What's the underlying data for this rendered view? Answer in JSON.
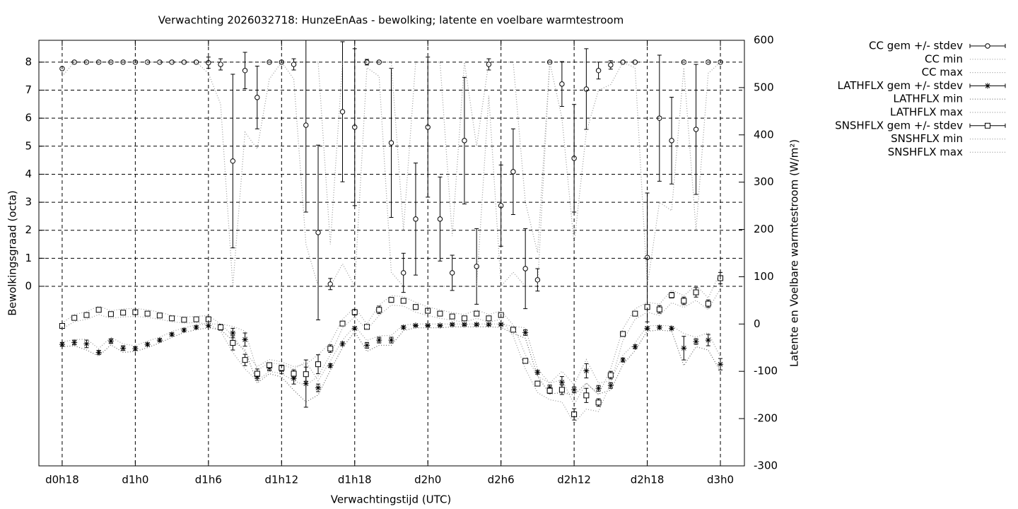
{
  "chart_data": {
    "type": "errorbar",
    "title": "Verwachting 2026032718: HunzeEnAas - bewolking; latente en voelbare warmtestroom",
    "x_label": "Verwachtingstijd (UTC)",
    "y_label": "Bewolkingsgraad (octa)",
    "y2_label": "Latente en Voelbare warmtestroom (W/m²)",
    "x": [
      18,
      19,
      20,
      21,
      22,
      23,
      24,
      25,
      26,
      27,
      28,
      29,
      30,
      31,
      32,
      33,
      34,
      35,
      36,
      37,
      38,
      39,
      40,
      41,
      42,
      43,
      44,
      45,
      46,
      47,
      48,
      49,
      50,
      51,
      52,
      53,
      54,
      55,
      56,
      57,
      58,
      59,
      60,
      61,
      62,
      63,
      64,
      65,
      66,
      67,
      68,
      69,
      70,
      71,
      72
    ],
    "xlim": [
      16.09,
      73.97
    ],
    "xticks": [
      {
        "value": 18,
        "label": "d0h18"
      },
      {
        "value": 24,
        "label": "d1h0"
      },
      {
        "value": 30,
        "label": "d1h6"
      },
      {
        "value": 36,
        "label": "d1h12"
      },
      {
        "value": 42,
        "label": "d1h18"
      },
      {
        "value": 48,
        "label": "d2h0"
      },
      {
        "value": 54,
        "label": "d2h6"
      },
      {
        "value": 60,
        "label": "d2h12"
      },
      {
        "value": 66,
        "label": "d2h18"
      },
      {
        "value": 72,
        "label": "d3h0"
      }
    ],
    "ylim": [
      -6.41,
      8.78
    ],
    "yticks": [
      0,
      1,
      2,
      3,
      4,
      5,
      6,
      7,
      8
    ],
    "y2lim": [
      -300,
      600
    ],
    "y2ticks": [
      -300,
      -200,
      -100,
      0,
      100,
      200,
      300,
      400,
      500,
      600
    ],
    "grid": true,
    "legend": "outside-right",
    "series": [
      {
        "name": "CC gem +/- stdev",
        "color": "#000000",
        "marker": "circle",
        "values": [
          7.77,
          8,
          8,
          8,
          8,
          8,
          8,
          8,
          8,
          8,
          8,
          8,
          7.98,
          7.92,
          4.47,
          7.7,
          6.74,
          8,
          8,
          7.92,
          5.75,
          1.92,
          0.08,
          6.23,
          5.68,
          8,
          8,
          5.12,
          0.48,
          2.4,
          5.68,
          2.4,
          0.48,
          5.2,
          0.71,
          7.92,
          2.88,
          4.09,
          0.63,
          0.23,
          8,
          7.22,
          4.57,
          7.04,
          7.7,
          7.9,
          8,
          8,
          1.03,
          6,
          5.2,
          8,
          5.6,
          8,
          8
        ],
        "errors": [
          0,
          0,
          0,
          0,
          0,
          0,
          0,
          0,
          0,
          0,
          0,
          0,
          0.2,
          0.2,
          3.1,
          0.65,
          1.12,
          0,
          0,
          0.2,
          3.1,
          3.12,
          0.2,
          2.5,
          2.8,
          0.1,
          0,
          2.66,
          0.7,
          2,
          2.5,
          1.5,
          0.63,
          2.26,
          1.35,
          0.2,
          1.45,
          1.53,
          1.43,
          0.4,
          0,
          0.8,
          1.92,
          1.44,
          0.3,
          0.15,
          0,
          0,
          2.3,
          2.25,
          1.55,
          0,
          2.32,
          0.05,
          0
        ]
      },
      {
        "name": "CC min",
        "color": "#999999",
        "values": [
          7.5,
          8,
          8,
          8,
          8,
          8,
          8,
          8,
          8,
          8,
          8,
          8,
          7.6,
          6.5,
          0,
          5.5,
          4.9,
          7.4,
          8,
          7.4,
          1.5,
          0,
          0,
          0.8,
          0,
          7.8,
          7.5,
          0.5,
          0,
          0,
          0,
          0,
          0,
          0,
          0,
          6.8,
          0,
          0.5,
          0,
          0,
          8,
          6,
          1.5,
          5.5,
          7,
          7.2,
          8,
          7.8,
          0,
          3,
          2.7,
          7.8,
          2,
          7.6,
          8
        ]
      },
      {
        "name": "CC max",
        "color": "#999999",
        "values": [
          8,
          8,
          8,
          8,
          8,
          8,
          8,
          8,
          8,
          8,
          8,
          8,
          8,
          8,
          8,
          8,
          8,
          8,
          8,
          8,
          8,
          8,
          1.5,
          8,
          8,
          8,
          8,
          8,
          2,
          8,
          8,
          8,
          1.8,
          8,
          5,
          8,
          8,
          8,
          3,
          1.2,
          8,
          8,
          8,
          8,
          8,
          8,
          8,
          8,
          8,
          8,
          8,
          8,
          8,
          8,
          8
        ]
      },
      {
        "name": "LATHFLX gem +/- stdev",
        "color": "#000000",
        "marker": "star",
        "axis": "y2",
        "values": [
          -43,
          -39,
          -42,
          -60,
          -36,
          -51,
          -52,
          -43,
          -34,
          -22,
          -13,
          -7,
          -3,
          -6,
          -19,
          -33,
          -111,
          -93,
          -97,
          -115,
          -126,
          -135,
          -88,
          -42,
          -9,
          -45,
          -34,
          -34,
          -7,
          -3,
          -3,
          -3,
          -1,
          -1,
          -1,
          -1,
          -1,
          -12,
          -18,
          -102,
          -135,
          -123,
          -139,
          -99,
          -136,
          -130,
          -76,
          -48,
          -9,
          -7,
          -9,
          -51,
          -37,
          -34,
          -85
        ],
        "errors": [
          4,
          5,
          8,
          4,
          5,
          5,
          4,
          3,
          3,
          3,
          3,
          3,
          3,
          3,
          10,
          14,
          8,
          6,
          8,
          12,
          50,
          8,
          4,
          4,
          3,
          6,
          6,
          6,
          3,
          2,
          2,
          2,
          2,
          2,
          2,
          2,
          2,
          3,
          6,
          4,
          6,
          12,
          6,
          15,
          6,
          6,
          4,
          4,
          3,
          3,
          3,
          25,
          6,
          12,
          12
        ]
      },
      {
        "name": "LATHFLX min",
        "color": "#666666",
        "axis": "y2",
        "values": [
          -48,
          -46,
          -55,
          -68,
          -44,
          -60,
          -58,
          -50,
          -40,
          -28,
          -18,
          -12,
          -8,
          -12,
          -35,
          -55,
          -125,
          -105,
          -112,
          -140,
          -165,
          -150,
          -98,
          -50,
          -16,
          -58,
          -45,
          -45,
          -14,
          -8,
          -8,
          -8,
          -6,
          -6,
          -6,
          -6,
          -7,
          -20,
          -30,
          -110,
          -148,
          -145,
          -150,
          -125,
          -148,
          -140,
          -86,
          -56,
          -15,
          -13,
          -15,
          -88,
          -48,
          -55,
          -100
        ]
      },
      {
        "name": "LATHFLX max",
        "color": "#999999",
        "axis": "y2",
        "values": [
          -38,
          -33,
          -32,
          -52,
          -28,
          -42,
          -46,
          -36,
          -28,
          -16,
          -8,
          -2,
          0,
          0,
          -5,
          -15,
          -98,
          -82,
          -85,
          -95,
          -80,
          -120,
          -78,
          -34,
          -4,
          -35,
          -25,
          -24,
          -2,
          0,
          0,
          0,
          0,
          0,
          0,
          0,
          0,
          -5,
          -8,
          -95,
          -125,
          -100,
          -128,
          -75,
          -125,
          -120,
          -66,
          -40,
          -4,
          -3,
          -4,
          -20,
          -28,
          -18,
          -70
        ]
      },
      {
        "name": "SNSHFLX gem +/- stdev",
        "color": "#000000",
        "marker": "square",
        "axis": "y2",
        "values": [
          -4,
          13,
          19,
          30,
          21,
          24,
          25,
          22,
          18,
          12,
          9,
          10,
          10,
          -7,
          -40,
          -76,
          -105,
          -87,
          -93,
          -105,
          -106,
          -85,
          -52,
          1,
          25,
          -6,
          30,
          51,
          49,
          36,
          28,
          22,
          16,
          12,
          22,
          12,
          19,
          -12,
          -78,
          -126,
          -141,
          -139,
          -191,
          -151,
          -166,
          -108,
          -21,
          22,
          36,
          31,
          61,
          49,
          67,
          43,
          97
        ],
        "errors": [
          3,
          3,
          3,
          3,
          3,
          3,
          3,
          3,
          3,
          3,
          3,
          3,
          5,
          6,
          15,
          12,
          10,
          5,
          6,
          8,
          15,
          20,
          8,
          5,
          6,
          4,
          8,
          5,
          5,
          5,
          5,
          4,
          4,
          4,
          4,
          5,
          5,
          4,
          5,
          5,
          6,
          10,
          12,
          15,
          8,
          8,
          5,
          4,
          4,
          8,
          6,
          8,
          10,
          8,
          12
        ]
      },
      {
        "name": "SNSHFLX min",
        "color": "#999999",
        "axis": "y2",
        "values": [
          -10,
          5,
          10,
          20,
          12,
          15,
          16,
          14,
          10,
          5,
          2,
          3,
          0,
          -15,
          -60,
          -95,
          -120,
          -100,
          -105,
          -120,
          -130,
          -110,
          -65,
          -8,
          15,
          -12,
          18,
          40,
          38,
          25,
          18,
          12,
          8,
          4,
          12,
          4,
          10,
          -25,
          -95,
          -145,
          -160,
          -165,
          -210,
          -180,
          -185,
          -125,
          -35,
          10,
          25,
          18,
          45,
          35,
          50,
          30,
          75
        ]
      },
      {
        "name": "SNSHFLX max",
        "color": "#999999",
        "axis": "y2",
        "values": [
          2,
          20,
          26,
          38,
          28,
          32,
          33,
          30,
          25,
          18,
          15,
          16,
          18,
          0,
          -25,
          -60,
          -90,
          -75,
          -80,
          -90,
          -85,
          -65,
          -40,
          10,
          35,
          0,
          40,
          60,
          58,
          46,
          36,
          30,
          24,
          20,
          30,
          20,
          28,
          -2,
          -65,
          -110,
          -125,
          -118,
          -170,
          -125,
          -150,
          -95,
          -10,
          32,
          46,
          42,
          72,
          60,
          82,
          55,
          110
        ]
      }
    ]
  }
}
